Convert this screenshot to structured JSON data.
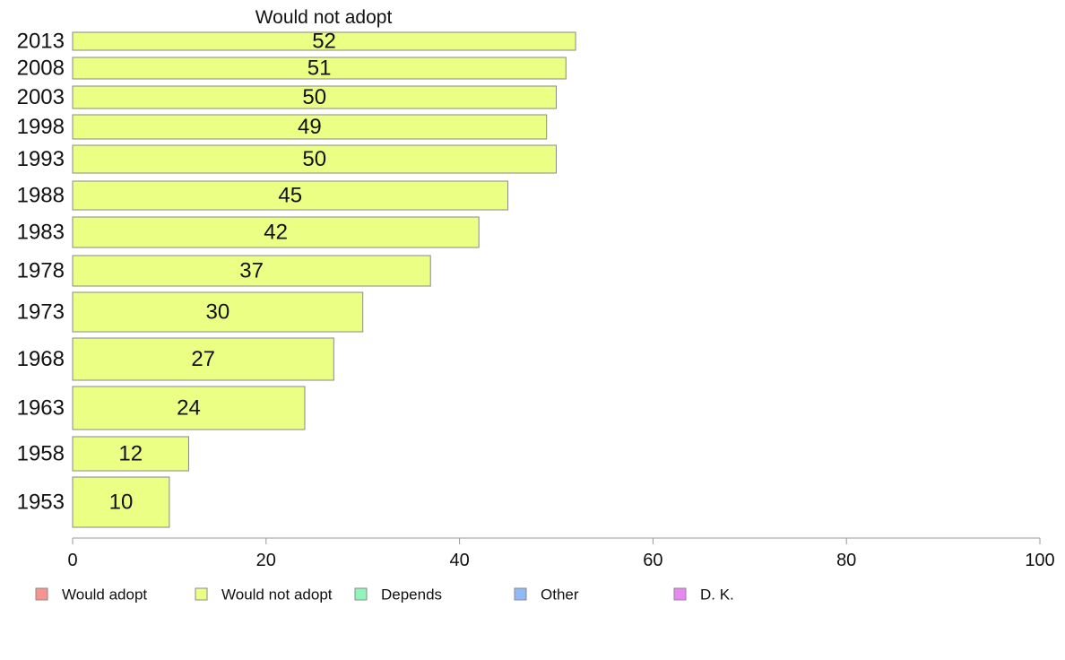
{
  "chart_data": {
    "type": "bar",
    "orientation": "horizontal",
    "title": "Would not adopt",
    "categories": [
      "2013",
      "2008",
      "2003",
      "1998",
      "1993",
      "1988",
      "1983",
      "1978",
      "1973",
      "1968",
      "1963",
      "1958",
      "1953"
    ],
    "series": [
      {
        "name": "Would not adopt",
        "color": "#ebff85",
        "values": [
          52,
          51,
          50,
          49,
          50,
          45,
          42,
          37,
          30,
          27,
          24,
          12,
          10
        ]
      }
    ],
    "xlim": [
      0,
      100
    ],
    "xticks": [
      0,
      20,
      40,
      60,
      80,
      100
    ],
    "grid": false,
    "legend": {
      "placement": "bottom",
      "items": [
        {
          "label": "Would adopt",
          "color": "#f8938d"
        },
        {
          "label": "Would not adopt",
          "color": "#ebff85"
        },
        {
          "label": "Depends",
          "color": "#8ff5b8"
        },
        {
          "label": "Other",
          "color": "#8fbaf5"
        },
        {
          "label": "D. K.",
          "color": "#ea85f5"
        }
      ]
    }
  }
}
